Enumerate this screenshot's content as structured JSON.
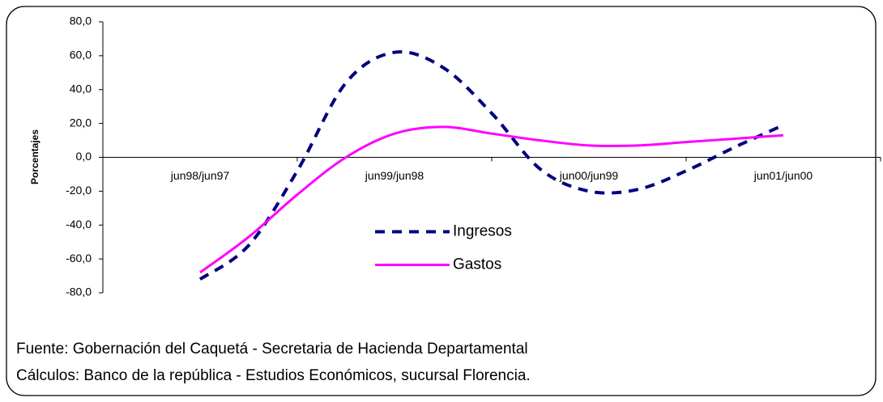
{
  "chart_data": {
    "type": "line",
    "y_label": "Porcentajes",
    "categories": [
      "jun98/jun97",
      null,
      null,
      null,
      "jun99/jun98",
      null,
      null,
      null,
      "jun00/jun99",
      null,
      null,
      null,
      "jun01/jun00"
    ],
    "series": [
      {
        "name": "Ingresos",
        "color": "#000080",
        "dashed": true,
        "values": [
          -72,
          -52,
          -8,
          44,
          62,
          53,
          26,
          -7,
          -20,
          -19,
          -8,
          6,
          19
        ]
      },
      {
        "name": "Gastos",
        "color": "#ff00ff",
        "dashed": false,
        "values": [
          -68,
          -47,
          -22,
          0,
          14,
          18,
          14,
          10,
          7,
          7,
          9,
          11,
          13
        ]
      }
    ],
    "ylim": [
      -80,
      80
    ],
    "yticks": [
      {
        "value": -80,
        "label": "-80,0"
      },
      {
        "value": -60,
        "label": "-60,0"
      },
      {
        "value": -40,
        "label": "-40,0"
      },
      {
        "value": -20,
        "label": "-20,0"
      },
      {
        "value": 0,
        "label": "0,0"
      },
      {
        "value": 20,
        "label": "20,0"
      },
      {
        "value": 40,
        "label": "40,0"
      },
      {
        "value": 60,
        "label": "60,0"
      },
      {
        "value": 80,
        "label": "80,0"
      }
    ],
    "legend": "center",
    "notes": [
      "Fuente: Gobernación del Caquetá - Secretaria de Hacienda Departamental",
      "Cálculos:  Banco de la república - Estudios Económicos, sucursal Florencia."
    ]
  }
}
